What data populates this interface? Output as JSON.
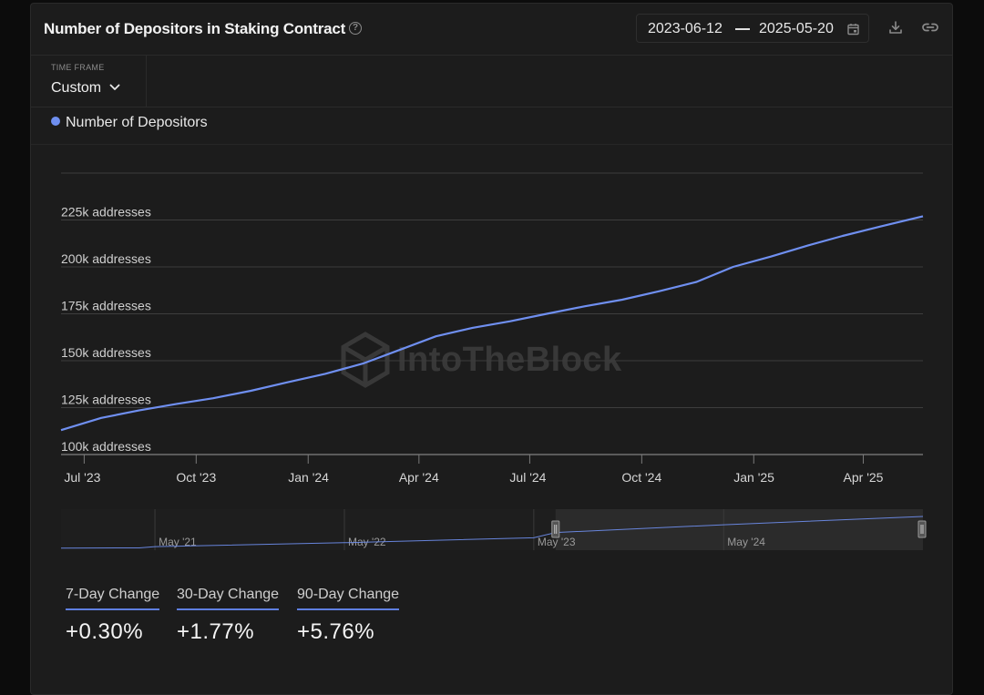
{
  "header": {
    "title": "Number of Depositors in Staking Contract",
    "date_start": "2023-06-12",
    "date_end": "2025-05-20"
  },
  "timeframe": {
    "label": "TIME FRAME",
    "value": "Custom"
  },
  "legend": {
    "label": "Number of Depositors",
    "color": "#6f8ff0"
  },
  "watermark": "IntoTheBlock",
  "chart_data": {
    "type": "line",
    "title": "Number of Depositors in Staking Contract",
    "ylabel": "",
    "xlabel": "",
    "ylim": [
      100000,
      250000
    ],
    "y_ticks": [
      {
        "value": 100000,
        "label": "100k addresses"
      },
      {
        "value": 125000,
        "label": "125k addresses"
      },
      {
        "value": 150000,
        "label": "150k addresses"
      },
      {
        "value": 175000,
        "label": "175k addresses"
      },
      {
        "value": 200000,
        "label": "200k addresses"
      },
      {
        "value": 225000,
        "label": "225k addresses"
      },
      {
        "value": 250000,
        "label": ""
      }
    ],
    "x_ticks": [
      {
        "date": "2023-07-01",
        "label": "Jul '23"
      },
      {
        "date": "2023-10-01",
        "label": "Oct '23"
      },
      {
        "date": "2024-01-01",
        "label": "Jan '24"
      },
      {
        "date": "2024-04-01",
        "label": "Apr '24"
      },
      {
        "date": "2024-07-01",
        "label": "Jul '24"
      },
      {
        "date": "2024-10-01",
        "label": "Oct '24"
      },
      {
        "date": "2025-01-01",
        "label": "Jan '25"
      },
      {
        "date": "2025-04-01",
        "label": "Apr '25"
      }
    ],
    "grid": true,
    "legend_position": "top-left",
    "series": [
      {
        "name": "Number of Depositors",
        "color": "#6f8ff0",
        "points": [
          {
            "x": "2023-06-12",
            "y": 113000
          },
          {
            "x": "2023-07-15",
            "y": 119500
          },
          {
            "x": "2023-08-15",
            "y": 123500
          },
          {
            "x": "2023-09-15",
            "y": 127000
          },
          {
            "x": "2023-10-15",
            "y": 130000
          },
          {
            "x": "2023-11-15",
            "y": 134000
          },
          {
            "x": "2023-12-15",
            "y": 138500
          },
          {
            "x": "2024-01-15",
            "y": 143000
          },
          {
            "x": "2024-02-15",
            "y": 148500
          },
          {
            "x": "2024-03-15",
            "y": 155500
          },
          {
            "x": "2024-04-15",
            "y": 163000
          },
          {
            "x": "2024-05-15",
            "y": 167500
          },
          {
            "x": "2024-06-15",
            "y": 171000
          },
          {
            "x": "2024-07-15",
            "y": 175000
          },
          {
            "x": "2024-08-15",
            "y": 179000
          },
          {
            "x": "2024-09-15",
            "y": 182500
          },
          {
            "x": "2024-10-15",
            "y": 187000
          },
          {
            "x": "2024-11-15",
            "y": 192000
          },
          {
            "x": "2024-12-15",
            "y": 200000
          },
          {
            "x": "2025-01-15",
            "y": 205500
          },
          {
            "x": "2025-02-15",
            "y": 211500
          },
          {
            "x": "2025-03-15",
            "y": 216500
          },
          {
            "x": "2025-04-15",
            "y": 221500
          },
          {
            "x": "2025-05-20",
            "y": 227000
          }
        ]
      }
    ],
    "navigator": {
      "x_ticks": [
        {
          "date": "2021-05-01",
          "label": "May '21"
        },
        {
          "date": "2022-05-01",
          "label": "May '22"
        },
        {
          "date": "2023-05-01",
          "label": "May '23"
        },
        {
          "date": "2024-05-01",
          "label": "May '24"
        }
      ],
      "range_start": "2020-11-01",
      "range_end": "2025-05-20",
      "selected_start": "2023-06-12",
      "selected_end": "2025-05-20",
      "points": [
        {
          "x": "2020-11-01",
          "y": 2000
        },
        {
          "x": "2021-04-01",
          "y": 3500
        },
        {
          "x": "2021-05-01",
          "y": 12000
        },
        {
          "x": "2022-05-01",
          "y": 40000
        },
        {
          "x": "2023-05-01",
          "y": 75000
        },
        {
          "x": "2023-06-12",
          "y": 113000
        },
        {
          "x": "2024-05-01",
          "y": 168000
        },
        {
          "x": "2025-05-20",
          "y": 227000
        }
      ]
    }
  },
  "changes": [
    {
      "label": "7-Day Change",
      "value": "+0.30%"
    },
    {
      "label": "30-Day Change",
      "value": "+1.77%"
    },
    {
      "label": "90-Day Change",
      "value": "+5.76%"
    }
  ]
}
